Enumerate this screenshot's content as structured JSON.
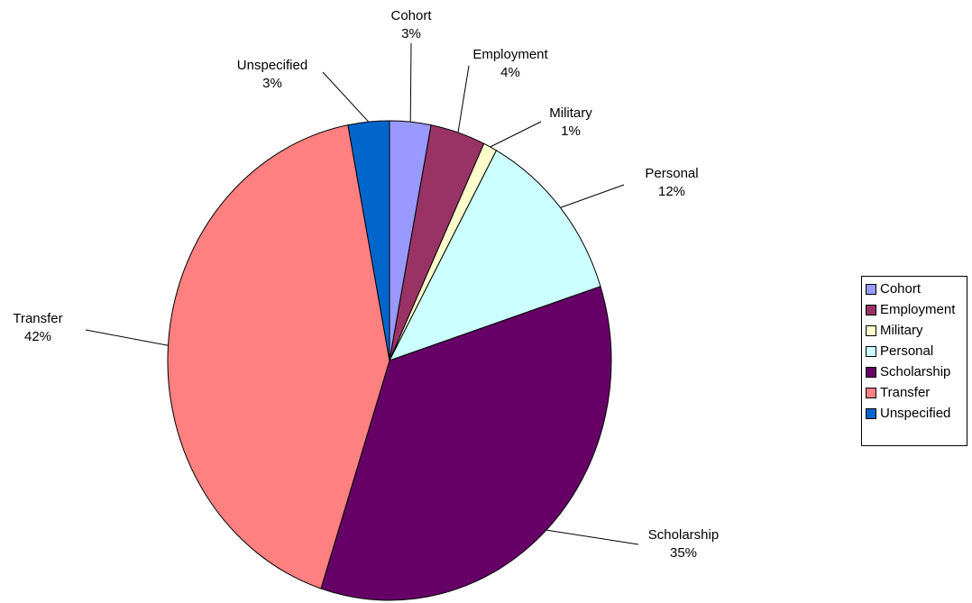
{
  "chart_data": {
    "type": "pie",
    "categories": [
      "Cohort",
      "Employment",
      "Military",
      "Personal",
      "Scholarship",
      "Transfer",
      "Unspecified"
    ],
    "values": [
      3,
      4,
      1,
      12,
      35,
      42,
      3
    ],
    "value_labels": [
      "3%",
      "4%",
      "1%",
      "12%",
      "35%",
      "42%",
      "3%"
    ],
    "colors": [
      "#9999FF",
      "#993366",
      "#FFFFCC",
      "#CCFFFF",
      "#660066",
      "#FF8080",
      "#0066CC"
    ],
    "legend_position": "right",
    "title": ""
  }
}
